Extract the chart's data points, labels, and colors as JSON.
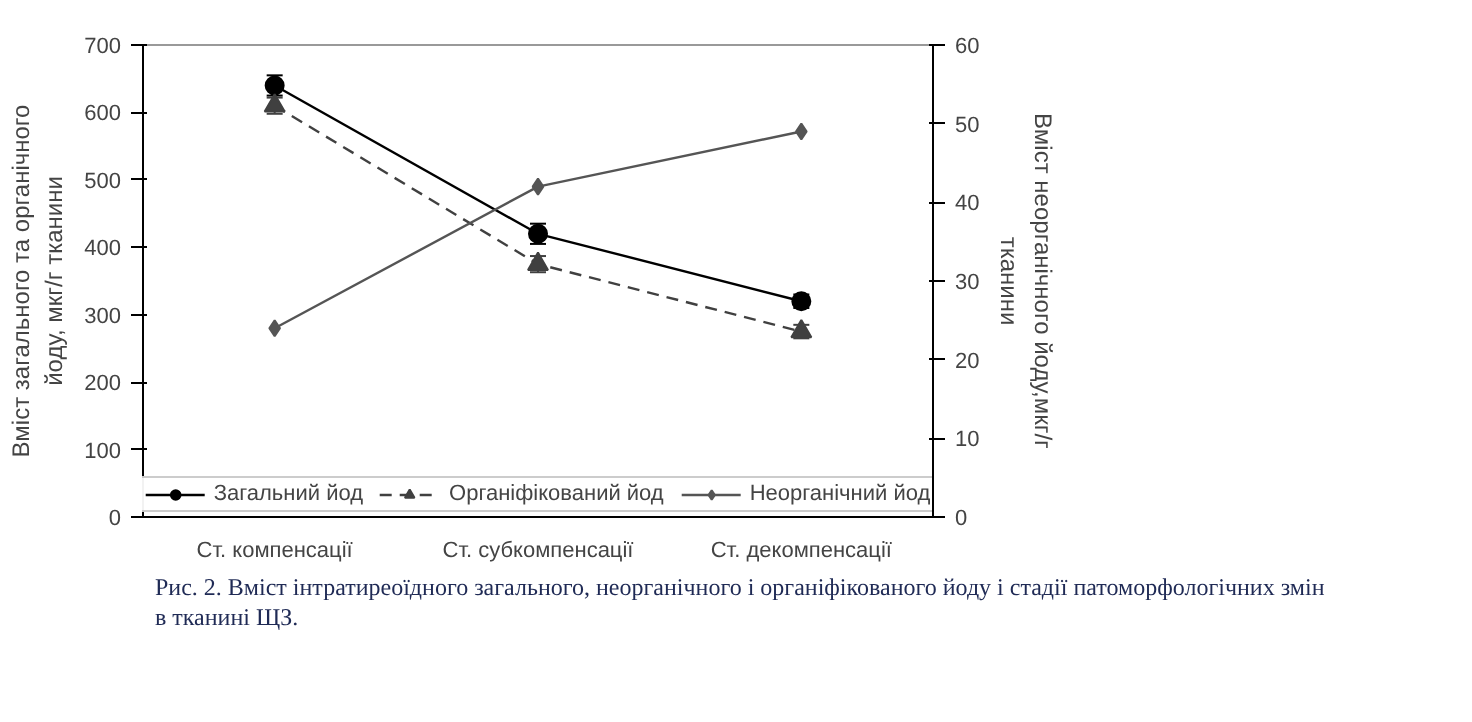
{
  "chart_data": {
    "type": "line",
    "categories": [
      "Ст. компенсації",
      "Ст. субкомпенсації",
      "Ст. декомпенсації"
    ],
    "ylabel": "Вміст загального та органічного йоду, мкг/г тканини",
    "y2label": "Вміст неорганічного йоду,мкг/г тканини",
    "ylim": [
      0,
      700
    ],
    "yticks": [
      0,
      100,
      200,
      300,
      400,
      500,
      600,
      700
    ],
    "y2lim": [
      0,
      60
    ],
    "y2ticks": [
      0,
      10,
      20,
      30,
      40,
      50,
      60
    ],
    "series": [
      {
        "name": "Загальний йод",
        "color": "#000000",
        "values": [
          640,
          420,
          320
        ],
        "errors": [
          15,
          15,
          10
        ],
        "marker": "circle",
        "line_style": "solid"
      },
      {
        "name": "Органіфікований йод",
        "color": "#404040",
        "values": [
          610,
          375,
          275
        ],
        "errors": [
          12,
          12,
          10
        ],
        "marker": "triangle",
        "line_style": "dashed"
      },
      {
        "name": "Неорганічний йод",
        "color": "#555555",
        "values": [
          24,
          42,
          49
        ],
        "axis": "y2",
        "marker": "diamond",
        "line_style": "solid"
      }
    ],
    "legend": "bottom",
    "grid": false,
    "annotations": [
      "Рис. 2. Вміст інтратиреоїдного загального, неорганічного і органіфікованого йоду і стадії патоморфологічних змін в тканині ЩЗ."
    ]
  }
}
